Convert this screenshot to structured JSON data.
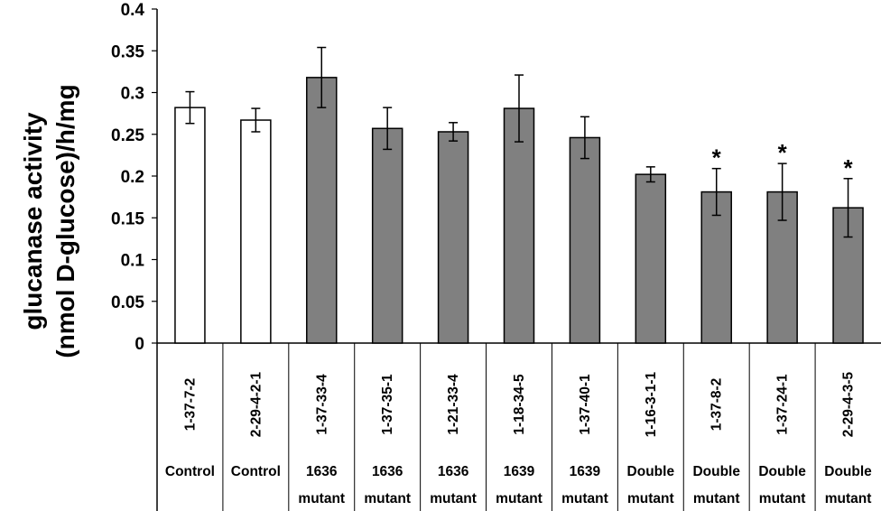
{
  "chart_data": {
    "type": "bar",
    "title": "",
    "ylabel_line1": "glucanase activity",
    "ylabel_line2": "(nmol D-glucose)/h/mg",
    "ylim": [
      0,
      0.4
    ],
    "yticks": [
      "0",
      "0.05",
      "0.1",
      "0.15",
      "0.2",
      "0.25",
      "0.3",
      "0.35",
      "0.4"
    ],
    "grid": false,
    "legend": "none",
    "bar_colors": {
      "Control": "#ffffff",
      "mutant": "#808080"
    },
    "categories": [
      "1-37-7-2",
      "2-29-4-2-1",
      "1-37-33-4",
      "1-37-35-1",
      "1-21-33-4",
      "1-18-34-5",
      "1-37-40-1",
      "1-16-3-1-1",
      "1-37-8-2",
      "1-37-24-1",
      "2-29-4-3-5"
    ],
    "groups": [
      [
        "Control",
        ""
      ],
      [
        "Control",
        ""
      ],
      [
        "1636",
        "mutant"
      ],
      [
        "1636",
        "mutant"
      ],
      [
        "1636",
        "mutant"
      ],
      [
        "1639",
        "mutant"
      ],
      [
        "1639",
        "mutant"
      ],
      [
        "Double",
        "mutant"
      ],
      [
        "Double",
        "mutant"
      ],
      [
        "Double",
        "mutant"
      ],
      [
        "Double",
        "mutant"
      ]
    ],
    "values": [
      0.282,
      0.267,
      0.318,
      0.257,
      0.253,
      0.281,
      0.246,
      0.202,
      0.181,
      0.181,
      0.162
    ],
    "errors": [
      0.019,
      0.014,
      0.036,
      0.025,
      0.011,
      0.04,
      0.025,
      0.009,
      0.028,
      0.034,
      0.035
    ],
    "fill": [
      "white",
      "white",
      "gray",
      "gray",
      "gray",
      "gray",
      "gray",
      "gray",
      "gray",
      "gray",
      "gray"
    ],
    "annotations": [
      "",
      "",
      "",
      "",
      "",
      "",
      "",
      "",
      "*",
      "*",
      "*"
    ]
  }
}
